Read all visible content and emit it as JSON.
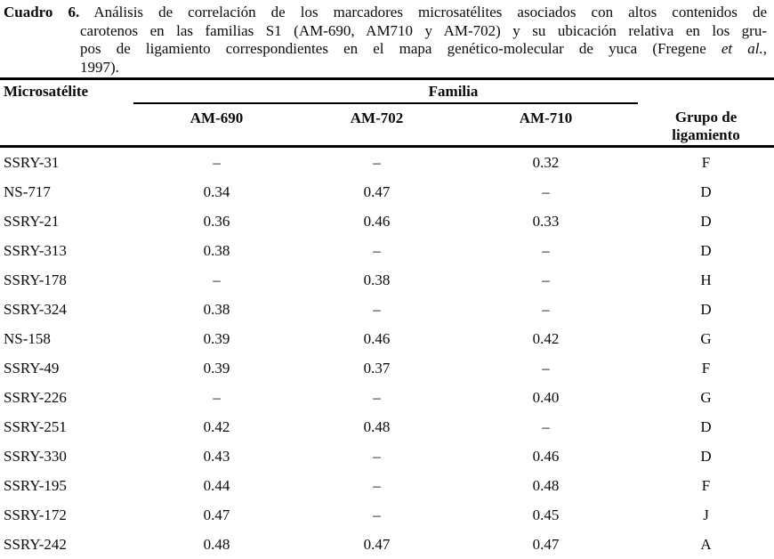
{
  "page": {
    "background": "#ffffff",
    "text_color": "#000000",
    "rule_color": "#000000"
  },
  "caption": {
    "label": "Cuadro 6.",
    "line1": "Análisis de correlación de los marcadores microsatélites asociados con altos contenidos de",
    "line2": "carotenos  en las familias S1 (AM-690, AM710 y AM-702) y su ubicación relativa en los gru-",
    "line3_pre": "pos de ligamiento correspondientes en el mapa genético-molecular de yuca (Fregene",
    "line3_italic": "et al.,",
    "line4": "1997)."
  },
  "table": {
    "col1_header": "Microsatélite",
    "group_header": "Familia",
    "family_columns": [
      "AM-690",
      "AM-702",
      "AM-710"
    ],
    "linkage_header": "Grupo de ligamiento",
    "empty_cell_symbol": "–",
    "rows": [
      {
        "marker": "SSRY-31",
        "am690": "–",
        "am702": "–",
        "am710": "0.32",
        "grupo": "F"
      },
      {
        "marker": "NS-717",
        "am690": "0.34",
        "am702": "0.47",
        "am710": "–",
        "grupo": "D"
      },
      {
        "marker": "SSRY-21",
        "am690": "0.36",
        "am702": "0.46",
        "am710": "0.33",
        "grupo": "D"
      },
      {
        "marker": "SSRY-313",
        "am690": "0.38",
        "am702": "–",
        "am710": "–",
        "grupo": "D"
      },
      {
        "marker": "SSRY-178",
        "am690": "–",
        "am702": "0.38",
        "am710": "–",
        "grupo": "H"
      },
      {
        "marker": "SSRY-324",
        "am690": "0.38",
        "am702": "–",
        "am710": "–",
        "grupo": "D"
      },
      {
        "marker": "NS-158",
        "am690": "0.39",
        "am702": "0.46",
        "am710": "0.42",
        "grupo": "G"
      },
      {
        "marker": "SSRY-49",
        "am690": "0.39",
        "am702": "0.37",
        "am710": "–",
        "grupo": "F"
      },
      {
        "marker": "SSRY-226",
        "am690": "–",
        "am702": "–",
        "am710": "0.40",
        "grupo": "G"
      },
      {
        "marker": "SSRY-251",
        "am690": "0.42",
        "am702": "0.48",
        "am710": "–",
        "grupo": "D"
      },
      {
        "marker": "SSRY-330",
        "am690": "0.43",
        "am702": "–",
        "am710": "0.46",
        "grupo": "D"
      },
      {
        "marker": "SSRY-195",
        "am690": "0.44",
        "am702": "–",
        "am710": "0.48",
        "grupo": "F"
      },
      {
        "marker": "SSRY-172",
        "am690": "0.47",
        "am702": "–",
        "am710": "0.45",
        "grupo": "J"
      },
      {
        "marker": "SSRY-242",
        "am690": "0.48",
        "am702": "0.47",
        "am710": "0.47",
        "grupo": "A"
      }
    ]
  }
}
